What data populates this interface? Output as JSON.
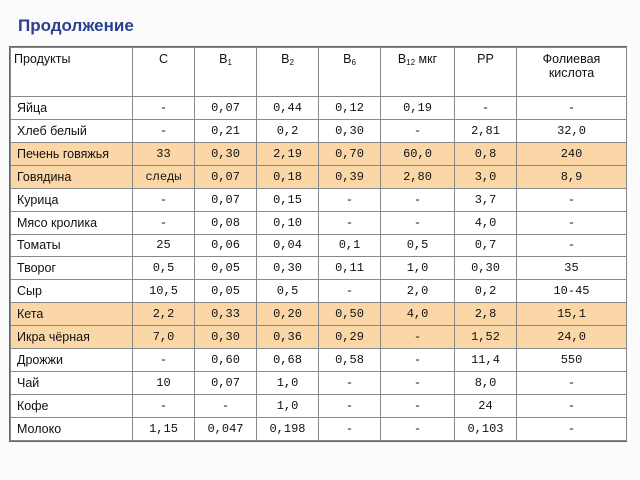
{
  "title": "Продолжение",
  "columns": {
    "product": "Продукты",
    "c": "С",
    "b1": {
      "base": "В",
      "sub": "1"
    },
    "b2": {
      "base": "В",
      "sub": "2"
    },
    "b6": {
      "base": "В",
      "sub": "6"
    },
    "b12": {
      "base": "В",
      "sub": "12",
      "suffix": " мкг"
    },
    "pp": "РР",
    "folic": "Фолиевая кислота"
  },
  "rows": [
    {
      "name": "Яйца",
      "c": "-",
      "b1": "0,07",
      "b2": "0,44",
      "b6": "0,12",
      "b12": "0,19",
      "pp": "-",
      "folic": "-",
      "highlight": false
    },
    {
      "name": "Хлеб белый",
      "c": "-",
      "b1": "0,21",
      "b2": "0,2",
      "b6": "0,30",
      "b12": "-",
      "pp": "2,81",
      "folic": "32,0",
      "highlight": false
    },
    {
      "name": "Печень говяжья",
      "c": "33",
      "b1": "0,30",
      "b2": "2,19",
      "b6": "0,70",
      "b12": "60,0",
      "pp": "0,8",
      "folic": "240",
      "highlight": true
    },
    {
      "name": "Говядина",
      "c": "следы",
      "b1": "0,07",
      "b2": "0,18",
      "b6": "0,39",
      "b12": "2,80",
      "pp": "3,0",
      "folic": "8,9",
      "highlight": true
    },
    {
      "name": "Курица",
      "c": "-",
      "b1": "0,07",
      "b2": "0,15",
      "b6": "-",
      "b12": "-",
      "pp": "3,7",
      "folic": "-",
      "highlight": false
    },
    {
      "name": "Мясо кролика",
      "c": "-",
      "b1": "0,08",
      "b2": "0,10",
      "b6": "-",
      "b12": "-",
      "pp": "4,0",
      "folic": "-",
      "highlight": false
    },
    {
      "name": "Томаты",
      "c": "25",
      "b1": "0,06",
      "b2": "0,04",
      "b6": "0,1",
      "b12": "0,5",
      "pp": "0,7",
      "folic": "-",
      "highlight": false
    },
    {
      "name": "Творог",
      "c": "0,5",
      "b1": "0,05",
      "b2": "0,30",
      "b6": "0,11",
      "b12": "1,0",
      "pp": "0,30",
      "folic": "35",
      "highlight": false
    },
    {
      "name": "Сыр",
      "c": "10,5",
      "b1": "0,05",
      "b2": "0,5",
      "b6": "-",
      "b12": "2,0",
      "pp": "0,2",
      "folic": "10-45",
      "highlight": false
    },
    {
      "name": "Кета",
      "c": "2,2",
      "b1": "0,33",
      "b2": "0,20",
      "b6": "0,50",
      "b12": "4,0",
      "pp": "2,8",
      "folic": "15,1",
      "highlight": true
    },
    {
      "name": "Икра чёрная",
      "c": "7,0",
      "b1": "0,30",
      "b2": "0,36",
      "b6": "0,29",
      "b12": "-",
      "pp": "1,52",
      "folic": "24,0",
      "highlight": true
    },
    {
      "name": "Дрожжи",
      "c": "-",
      "b1": "0,60",
      "b2": "0,68",
      "b6": "0,58",
      "b12": "-",
      "pp": "11,4",
      "folic": "550",
      "highlight": false
    },
    {
      "name": "Чай",
      "c": "10",
      "b1": "0,07",
      "b2": "1,0",
      "b6": "-",
      "b12": "-",
      "pp": "8,0",
      "folic": "-",
      "highlight": false
    },
    {
      "name": "Кофе",
      "c": "-",
      "b1": "-",
      "b2": "1,0",
      "b6": "-",
      "b12": "-",
      "pp": "24",
      "folic": "-",
      "highlight": false
    },
    {
      "name": "Молоко",
      "c": "1,15",
      "b1": "0,047",
      "b2": "0,198",
      "b6": "-",
      "b12": "-",
      "pp": "0,103",
      "folic": "-",
      "highlight": false
    }
  ],
  "colors": {
    "title": "#2b3f8f",
    "highlight_row": "#fbd7a8",
    "border": "#888888"
  }
}
